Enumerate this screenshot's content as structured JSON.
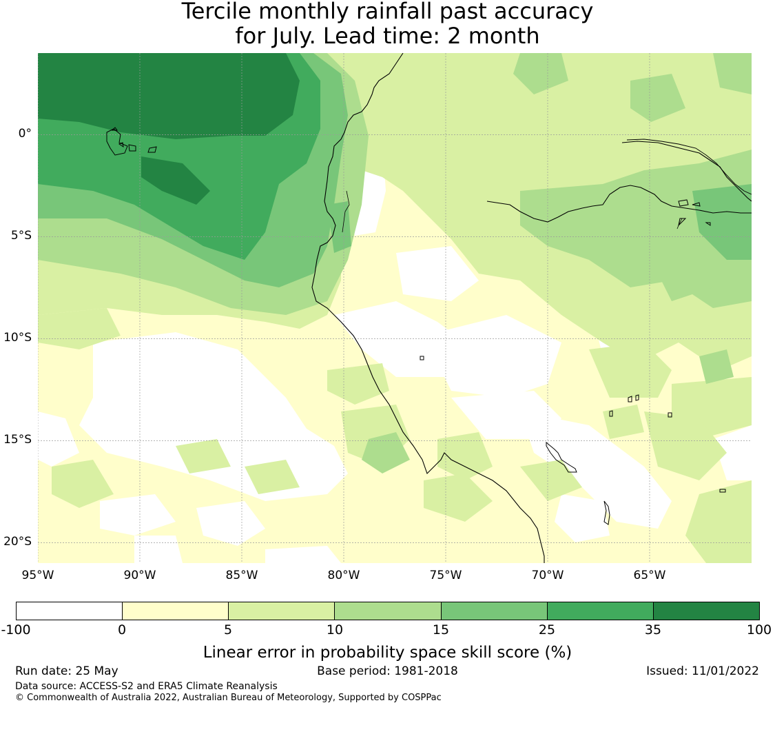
{
  "title": {
    "line1": "Tercile monthly rainfall past accuracy",
    "line2": "for July. Lead time: 2 month"
  },
  "map": {
    "extent": {
      "lon_min": -95,
      "lon_max": -60,
      "lat_min": -21,
      "lat_max": 4
    },
    "latitude_ticks": [
      {
        "value": 0,
        "label": "0°"
      },
      {
        "value": -5,
        "label": "5°S"
      },
      {
        "value": -10,
        "label": "10°S"
      },
      {
        "value": -15,
        "label": "15°S"
      },
      {
        "value": -20,
        "label": "20°S"
      }
    ],
    "longitude_ticks": [
      {
        "value": -95,
        "label": "95°W"
      },
      {
        "value": -90,
        "label": "90°W"
      },
      {
        "value": -85,
        "label": "85°W"
      },
      {
        "value": -80,
        "label": "80°W"
      },
      {
        "value": -75,
        "label": "75°W"
      },
      {
        "value": -70,
        "label": "70°W"
      },
      {
        "value": -65,
        "label": "65°W"
      }
    ],
    "grid_color": "#9a9a9a",
    "coastline_color": "#000000",
    "features": {
      "coastline": "west coast of South America",
      "river": "Amazon / Marañón river",
      "islands": "Galápagos Islands",
      "lake": "Lake Titicaca"
    }
  },
  "colorbar": {
    "bin_edges": [
      "-100",
      "0",
      "5",
      "10",
      "15",
      "25",
      "35",
      "100"
    ],
    "colors": [
      "#ffffff",
      "#fffecb",
      "#d9f0a3",
      "#addd8e",
      "#78c679",
      "#41ab5d",
      "#238443"
    ],
    "label": "Linear error in probability space skill score (%)"
  },
  "footer": {
    "run_date": "Run date: 25 May",
    "base_period": "Base period: 1981-2018",
    "issued": "Issued: 11/01/2022",
    "data_source": "Data source: ACCESS-S2 and ERA5 Climate Reanalysis",
    "copyright": "© Commonwealth of Australia 2022, Australian Bureau of Meteorology, Supported by COSPPac"
  }
}
